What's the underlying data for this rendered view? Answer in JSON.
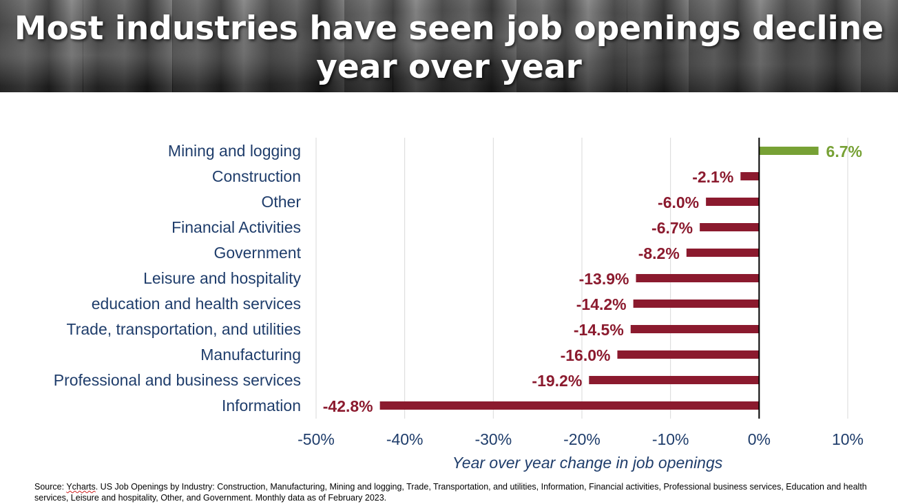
{
  "title": "Most industries have seen job openings decline year over year",
  "source": {
    "prefix": "Source: ",
    "name": "Ycharts",
    "text": ". US Job Openings by Industry: Construction, Manufacturing, Mining and logging, Trade, Transportation, and utilities, Information, Financial activities, Professional business services, Education and health services, Leisure and hospitality, Other, and Government. Monthly data as of February 2023."
  },
  "colors": {
    "positive": "#77a135",
    "negative": "#8b1a2e",
    "category_text": "#1f3d6b",
    "gridline": "#d9d9d9",
    "zero_axis": "#000000"
  },
  "chart_data": {
    "type": "bar",
    "orientation": "horizontal",
    "title": "Most industries have seen job openings decline year over year",
    "xlabel": "Year over year change in job openings",
    "ylabel": "",
    "xlim": [
      -50,
      10
    ],
    "xticks": [
      -50,
      -40,
      -30,
      -20,
      -10,
      0,
      10
    ],
    "xtick_labels": [
      "-50%",
      "-40%",
      "-30%",
      "-20%",
      "-10%",
      "0%",
      "10%"
    ],
    "grid": "vertical",
    "legend": "none",
    "categories": [
      "Mining and logging",
      "Construction",
      "Other",
      "Financial Activities",
      "Government",
      "Leisure and hospitality",
      "education and health services",
      "Trade, transportation, and utilities",
      "Manufacturing",
      "Professional and business services",
      "Information"
    ],
    "values": [
      6.7,
      -2.1,
      -6.0,
      -6.7,
      -8.2,
      -13.9,
      -14.2,
      -14.5,
      -16.0,
      -19.2,
      -42.8
    ],
    "value_labels": [
      "6.7%",
      "-2.1%",
      "-6.0%",
      "-6.7%",
      "-8.2%",
      "-13.9%",
      "-14.2%",
      "-14.5%",
      "-16.0%",
      "-19.2%",
      "-42.8%"
    ]
  }
}
